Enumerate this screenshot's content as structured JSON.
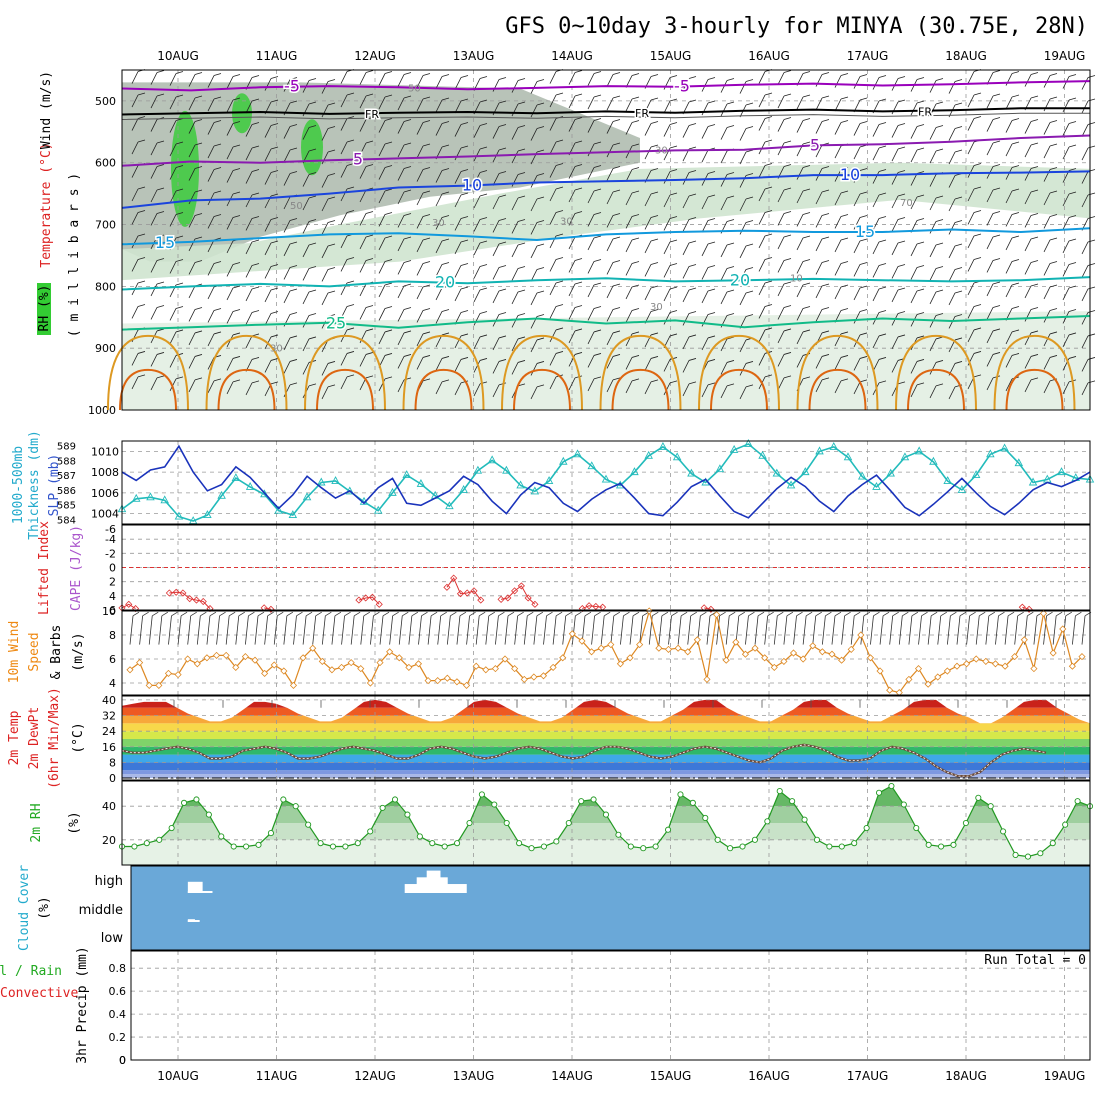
{
  "title": "GFS 0~10day 3-hourly for MINYA (30.75E, 28N)",
  "dates": [
    "10AUG",
    "11AUG",
    "12AUG",
    "13AUG",
    "14AUG",
    "15AUG",
    "16AUG",
    "17AUG",
    "18AUG",
    "19AUG"
  ],
  "run_total_label": "Run Total = 0",
  "panel_labels": {
    "upper": [
      "RH (%)",
      "Temperature (°C)",
      "Wind (m/s)",
      "( m i l l i b a r s )"
    ],
    "slp": [
      "1000-500mb",
      "Thickness (dm)",
      "SLP (mb)"
    ],
    "cape": [
      "Lifted Index",
      "CAPE (J/kg)"
    ],
    "wind10": [
      "10m Wind",
      "Speed",
      "& Barbs",
      "(m/s)"
    ],
    "temp2m": [
      "2m Temp",
      "2m DewPt",
      "(6hr Min/Max)",
      "(°C)"
    ],
    "rh2m": [
      "2m RH",
      "(%)"
    ],
    "cloud": [
      "Cloud Cover",
      "(%)"
    ],
    "precip": [
      "Total / Rain",
      "Convective",
      "3hr Precip (mm)"
    ]
  },
  "colors": {
    "rh_fill": "#33cc33",
    "dark_shade": "#9aaa9a",
    "light_shade": "#cfe4cf",
    "iso_minus5": "#9900bb",
    "iso_fr": "#000000",
    "iso_5": "#8a1ab0",
    "iso_10": "#1a44dd",
    "iso_15": "#1199dd",
    "iso_20": "#11b3b3",
    "iso_25": "#11bb88",
    "iso_30": "#dd9922",
    "iso_35": "#dd6611",
    "slp": "#1a33bb",
    "thickness": "#22bbbb",
    "li": "#dd3333",
    "wind10": "#dd8822",
    "rh2m": "#229922",
    "cloud_bg": "#6aa8d8",
    "cloud_box": "#ffffff",
    "axis_label_green": "#22aa22",
    "axis_label_red": "#dd2222",
    "axis_label_blue": "#3355cc",
    "axis_label_cyan": "#22aacc",
    "axis_label_violet": "#aa55cc",
    "axis_label_orange": "#ee8811"
  },
  "chart_data": [
    {
      "type": "contour",
      "panel": "upper-air",
      "yaxis": "pressure (mb)",
      "yticks": [
        500,
        600,
        700,
        800,
        900,
        1000
      ],
      "ylim": [
        450,
        1000
      ],
      "isotherm_labels": [
        "-5",
        "-5",
        "FR",
        "FR",
        "FR",
        "5",
        "5",
        "10",
        "10",
        "15",
        "15",
        "20",
        "20",
        "25"
      ],
      "rh_contour_labels": [
        "50",
        "30",
        "50",
        "30",
        "30",
        "10",
        "30",
        "70",
        "30"
      ],
      "isotherms": [
        {
          "label": "-5",
          "p": [
            480,
            483,
            478,
            476,
            478,
            481,
            479,
            476,
            477,
            474,
            472,
            475,
            473,
            470,
            468
          ]
        },
        {
          "label": "FR",
          "p": [
            522,
            520,
            518,
            521,
            519,
            518,
            520,
            517,
            519,
            516,
            514,
            517,
            515,
            512,
            512
          ]
        },
        {
          "label": "5",
          "p": [
            605,
            598,
            600,
            596,
            593,
            590,
            586,
            583,
            580,
            579,
            572,
            570,
            566,
            560,
            556
          ]
        },
        {
          "label": "10",
          "p": [
            673,
            661,
            658,
            650,
            640,
            637,
            632,
            630,
            628,
            625,
            620,
            620,
            617,
            616,
            614
          ]
        },
        {
          "label": "15",
          "p": [
            732,
            728,
            722,
            716,
            714,
            719,
            725,
            716,
            712,
            710,
            712,
            712,
            708,
            712,
            706
          ]
        },
        {
          "label": "20",
          "p": [
            805,
            800,
            796,
            800,
            792,
            795,
            790,
            787,
            792,
            790,
            788,
            790,
            792,
            790,
            785
          ]
        },
        {
          "label": "25",
          "p": [
            870,
            866,
            862,
            859,
            867,
            858,
            852,
            860,
            855,
            866,
            858,
            852,
            856,
            852,
            848
          ]
        }
      ]
    },
    {
      "type": "line",
      "panel": "slp-thickness",
      "series": [
        {
          "name": "SLP (mb)",
          "axis": "right",
          "ylim": [
            1003,
            1011
          ],
          "yticks": [
            1004,
            1006,
            1008,
            1010
          ],
          "values": [
            1008.0,
            1007.2,
            1008.2,
            1008.5,
            1010.5,
            1008.0,
            1006.2,
            1006.8,
            1008.5,
            1007.5,
            1006.0,
            1004.5,
            1005.8,
            1007.6,
            1006.5,
            1005.5,
            1006.2,
            1005.0,
            1006.5,
            1007.4,
            1005.0,
            1004.8,
            1005.5,
            1006.2,
            1007.6,
            1006.8,
            1005.2,
            1004.0,
            1005.8,
            1007.0,
            1006.5,
            1005.0,
            1004.2,
            1005.4,
            1006.3,
            1006.9,
            1005.5,
            1004.0,
            1003.8,
            1005.1,
            1006.6,
            1007.3,
            1005.7,
            1004.2,
            1003.6,
            1005.0,
            1006.4,
            1007.5,
            1006.6,
            1005.2,
            1004.2,
            1005.7,
            1006.8,
            1007.7,
            1006.2,
            1004.6,
            1003.8,
            1004.9,
            1006.1,
            1007.4,
            1006.0,
            1004.7,
            1003.9,
            1005.0,
            1006.3,
            1007.0,
            1006.6,
            1007.2,
            1008.0
          ]
        },
        {
          "name": "1000-500mb Thickness (dm)",
          "axis": "left",
          "ylim": [
            583.7,
            589.3
          ],
          "yticks": [
            584,
            585,
            586,
            587,
            588,
            589
          ],
          "values": [
            584.7,
            585.4,
            585.5,
            585.3,
            584.2,
            583.9,
            584.3,
            585.6,
            586.8,
            586.2,
            585.7,
            584.6,
            584.3,
            585.5,
            586.5,
            586.6,
            585.9,
            585.2,
            584.6,
            585.8,
            587.0,
            586.4,
            585.6,
            584.9,
            586.0,
            587.3,
            588.0,
            587.3,
            586.3,
            585.9,
            586.6,
            587.9,
            588.4,
            587.6,
            586.7,
            586.3,
            587.2,
            588.3,
            588.9,
            588.2,
            587.1,
            586.5,
            587.4,
            588.7,
            589.1,
            588.3,
            587.1,
            586.3,
            587.2,
            588.6,
            588.9,
            588.2,
            586.9,
            586.2,
            587.1,
            588.2,
            588.6,
            587.9,
            586.6,
            586.0,
            587.0,
            588.4,
            588.8,
            587.8,
            586.5,
            586.7,
            587.2,
            586.8,
            586.7
          ]
        }
      ]
    },
    {
      "type": "line",
      "panel": "lifted-index-cape",
      "yticks": [
        -4,
        -2,
        0,
        2,
        4,
        6
      ],
      "ylim": [
        -6,
        6
      ],
      "zero_line": true,
      "series": [
        {
          "name": "Lifted Index",
          "segments": [
            {
              "start": 0,
              "values": [
                5.7,
                5.2,
                5.8
              ]
            },
            {
              "start": 7,
              "values": [
                3.6,
                3.5,
                3.6,
                4.4,
                4.6,
                4.8,
                5.8
              ]
            },
            {
              "start": 21,
              "values": [
                5.7,
                5.9
              ]
            },
            {
              "start": 35,
              "values": [
                4.6,
                4.3,
                4.2,
                5.2
              ]
            },
            {
              "start": 48,
              "values": [
                2.8,
                1.5,
                3.7,
                3.6,
                3.3,
                4.6
              ]
            },
            {
              "start": 56,
              "values": [
                4.5,
                4.3,
                3.3,
                2.6,
                4.3,
                5.2
              ]
            },
            {
              "start": 68,
              "values": [
                5.8,
                5.4,
                5.5,
                5.6
              ]
            },
            {
              "start": 86,
              "values": [
                5.7,
                5.9
              ]
            },
            {
              "start": 133,
              "values": [
                5.6,
                5.9
              ]
            }
          ]
        }
      ]
    },
    {
      "type": "line",
      "panel": "10m-wind",
      "yticks": [
        4,
        6,
        8,
        10
      ],
      "ylim": [
        3,
        10
      ],
      "series": [
        {
          "name": "10m Wind Speed (m/s)",
          "values": [
            5.1,
            5.7,
            3.8,
            3.8,
            4.8,
            4.7,
            6.0,
            5.6,
            6.1,
            6.3,
            6.3,
            5.3,
            6.2,
            5.9,
            4.8,
            5.5,
            5.0,
            3.8,
            6.1,
            6.9,
            5.8,
            5.1,
            5.3,
            5.7,
            5.2,
            4.0,
            5.7,
            6.6,
            6.1,
            5.3,
            5.6,
            4.2,
            4.2,
            4.4,
            4.1,
            3.8,
            5.4,
            5.1,
            5.2,
            6.0,
            5.2,
            4.3,
            4.5,
            4.6,
            5.3,
            6.1,
            8.1,
            7.5,
            6.6,
            6.9,
            7.2,
            5.6,
            6.1,
            7.2,
            10.0,
            6.9,
            6.8,
            6.9,
            6.6,
            7.6,
            4.3,
            9.7,
            5.9,
            7.4,
            6.4,
            6.9,
            6.1,
            5.3,
            5.8,
            6.5,
            6.0,
            7.1,
            6.6,
            6.4,
            5.9,
            6.8,
            8.0,
            6.1,
            5.0,
            3.4,
            3.2,
            4.3,
            5.2,
            3.9,
            4.5,
            5.0,
            5.4,
            5.6,
            6.0,
            5.8,
            5.6,
            5.4,
            6.2,
            7.6,
            5.2,
            9.8,
            6.5,
            8.5,
            5.4,
            6.2
          ]
        }
      ]
    },
    {
      "type": "area",
      "panel": "2m-temperature",
      "yticks": [
        0,
        8,
        16,
        24,
        32,
        40
      ],
      "ylim": [
        -1,
        42
      ],
      "series": [
        {
          "name": "2m Temp (°C)",
          "values": [
            37,
            38,
            39,
            39,
            39,
            36,
            33,
            31,
            29,
            29,
            31,
            35,
            39,
            39,
            38,
            36,
            33,
            31,
            29,
            29,
            31,
            35,
            39,
            40,
            39,
            36,
            33,
            31,
            29,
            29,
            31,
            35,
            39,
            40,
            39,
            36,
            33,
            31,
            29,
            29,
            31,
            35,
            39,
            40,
            39,
            36,
            33,
            31,
            29,
            29,
            32,
            35,
            39,
            40,
            40,
            36,
            33,
            31,
            29,
            29,
            32,
            35,
            39,
            40,
            40,
            36,
            33,
            31,
            29,
            29,
            32,
            35,
            39,
            40,
            40,
            36,
            33,
            31,
            28,
            28,
            31,
            35,
            39,
            40,
            40,
            36,
            33,
            30,
            28
          ]
        },
        {
          "name": "2m DewPt (°C)",
          "values": [
            14,
            13,
            13,
            14,
            15,
            16,
            15,
            13,
            10,
            10,
            11,
            14,
            15,
            16,
            15,
            13,
            10,
            10,
            11,
            13,
            15,
            16,
            15,
            14,
            12,
            10,
            10,
            12,
            15,
            16,
            15,
            13,
            11,
            10,
            11,
            13,
            15,
            16,
            15,
            13,
            11,
            10,
            11,
            14,
            16,
            16,
            15,
            13,
            11,
            10,
            11,
            13,
            15,
            16,
            15,
            13,
            11,
            9,
            8,
            10,
            14,
            16,
            17,
            16,
            14,
            11,
            9,
            9,
            10,
            14,
            16,
            15,
            13,
            10,
            6,
            3,
            1,
            1,
            3,
            8,
            12,
            14,
            15,
            14,
            13
          ]
        }
      ]
    },
    {
      "type": "area",
      "panel": "2m-rh",
      "yticks": [
        20,
        40
      ],
      "ylim": [
        5,
        55
      ],
      "series": [
        {
          "name": "2m RH (%)",
          "values": [
            16,
            16,
            18,
            20,
            27,
            42,
            44,
            35,
            22,
            16,
            16,
            17,
            24,
            44,
            40,
            29,
            18,
            16,
            16,
            18,
            25,
            39,
            44,
            35,
            22,
            18,
            16,
            18,
            30,
            47,
            41,
            30,
            18,
            15,
            16,
            19,
            30,
            43,
            44,
            35,
            23,
            16,
            15,
            16,
            26,
            47,
            42,
            33,
            20,
            15,
            16,
            20,
            31,
            49,
            43,
            32,
            20,
            16,
            16,
            18,
            27,
            48,
            52,
            41,
            27,
            17,
            16,
            17,
            30,
            45,
            40,
            25,
            11,
            10,
            12,
            18,
            29,
            43,
            40
          ]
        }
      ]
    },
    {
      "type": "bar",
      "panel": "cloud-cover",
      "levels": [
        "high",
        "middle",
        "low"
      ],
      "yticks": [
        "high",
        "middle",
        "low"
      ],
      "series": [
        {
          "name": "high",
          "segments": [
            {
              "day_offset": 0.1,
              "width": 0.25,
              "value": 0.4
            },
            {
              "day_offset": 2.2,
              "width": 0.7,
              "value": 0.8
            }
          ]
        },
        {
          "name": "middle",
          "segments": [
            {
              "day_offset": 0.1,
              "width": 0.12,
              "value": 0.1
            }
          ]
        },
        {
          "name": "low",
          "segments": []
        }
      ]
    },
    {
      "type": "bar",
      "panel": "3hr-precip",
      "yticks": [
        0,
        0.2,
        0.4,
        0.6,
        0.8
      ],
      "ylim": [
        0,
        0.95
      ],
      "series": [
        {
          "name": "3hr Precip (mm)",
          "values": []
        }
      ]
    }
  ]
}
